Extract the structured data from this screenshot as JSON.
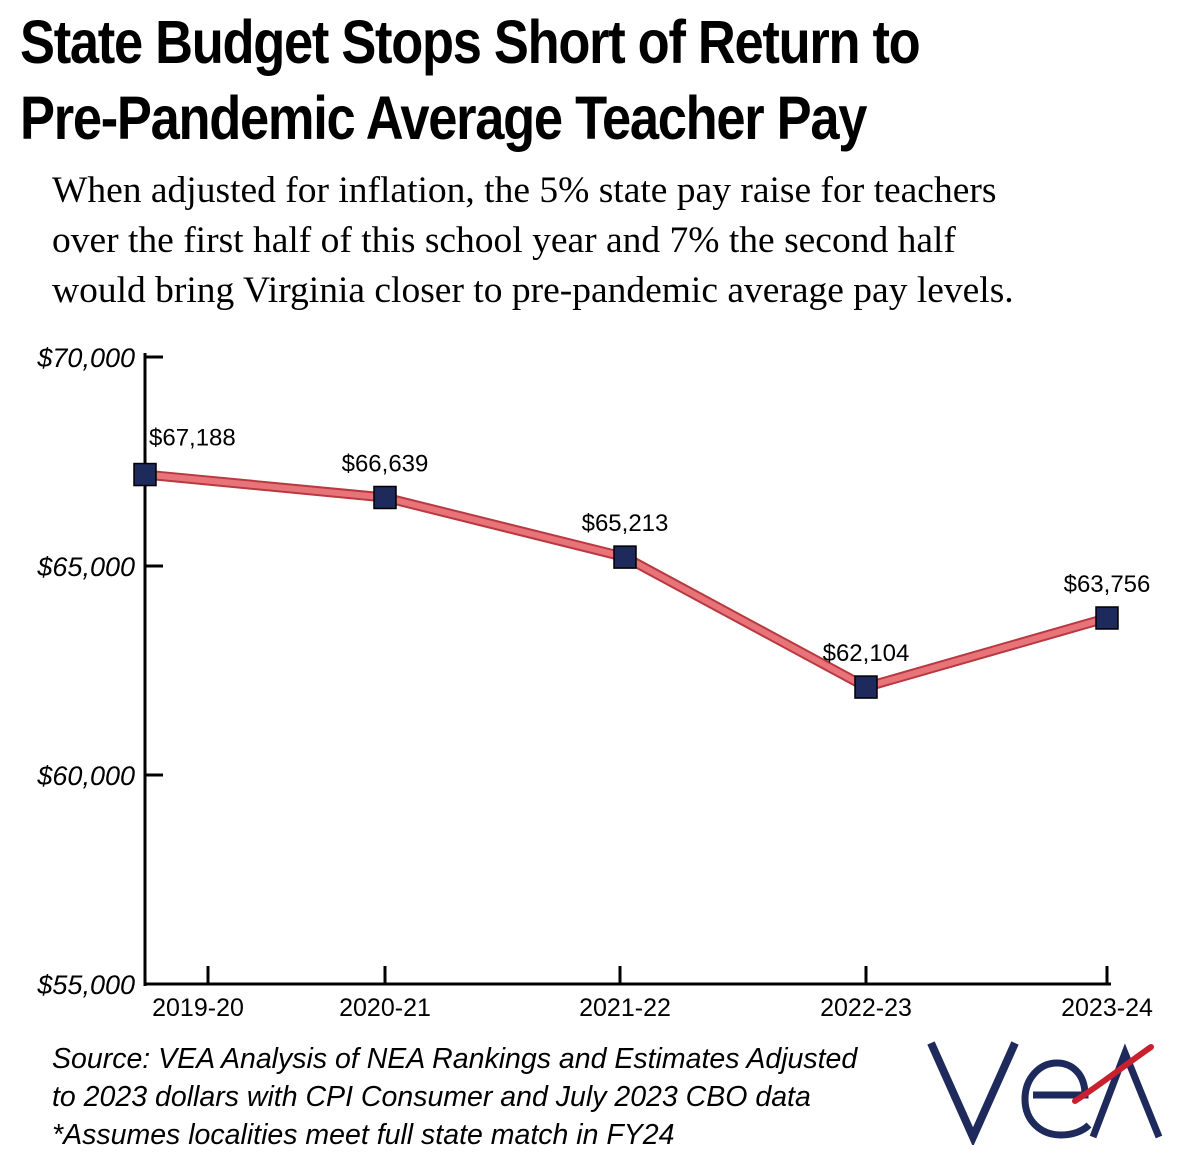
{
  "title_line1": "State Budget Stops Short of Return to",
  "title_line2": "Pre-Pandemic Average Teacher Pay",
  "subtitle_lines": [
    "When adjusted for inflation, the 5% state pay raise for teachers",
    "over the first half of this school year and 7% the second half",
    "would bring Virginia closer to pre-pandemic average pay levels."
  ],
  "chart_data": {
    "type": "line",
    "categories": [
      "2019-20",
      "2020-21",
      "2021-22",
      "2022-23",
      "2023-24"
    ],
    "values": [
      67188,
      66639,
      65213,
      62104,
      63756
    ],
    "data_labels": [
      "$67,188",
      "$66,639",
      "$65,213",
      "$62,104",
      "$63,756"
    ],
    "ylim": [
      55000,
      70000
    ],
    "yticks": [
      55000,
      60000,
      65000,
      70000
    ],
    "ytick_labels": [
      "$55,000",
      "$60,000",
      "$65,000",
      "$70,000"
    ],
    "grid": false,
    "line_color": "#e8747a",
    "marker_color": "#1f2a5c"
  },
  "source_lines": [
    "Source: VEA Analysis of NEA Rankings and Estimates Adjusted",
    "to 2023 dollars with CPI Consumer and July 2023 CBO data",
    "*Assumes localities meet full state match in FY24"
  ],
  "logo_text": "VEA",
  "colors": {
    "logo_navy": "#1f2a5c",
    "logo_red": "#c8202f"
  }
}
